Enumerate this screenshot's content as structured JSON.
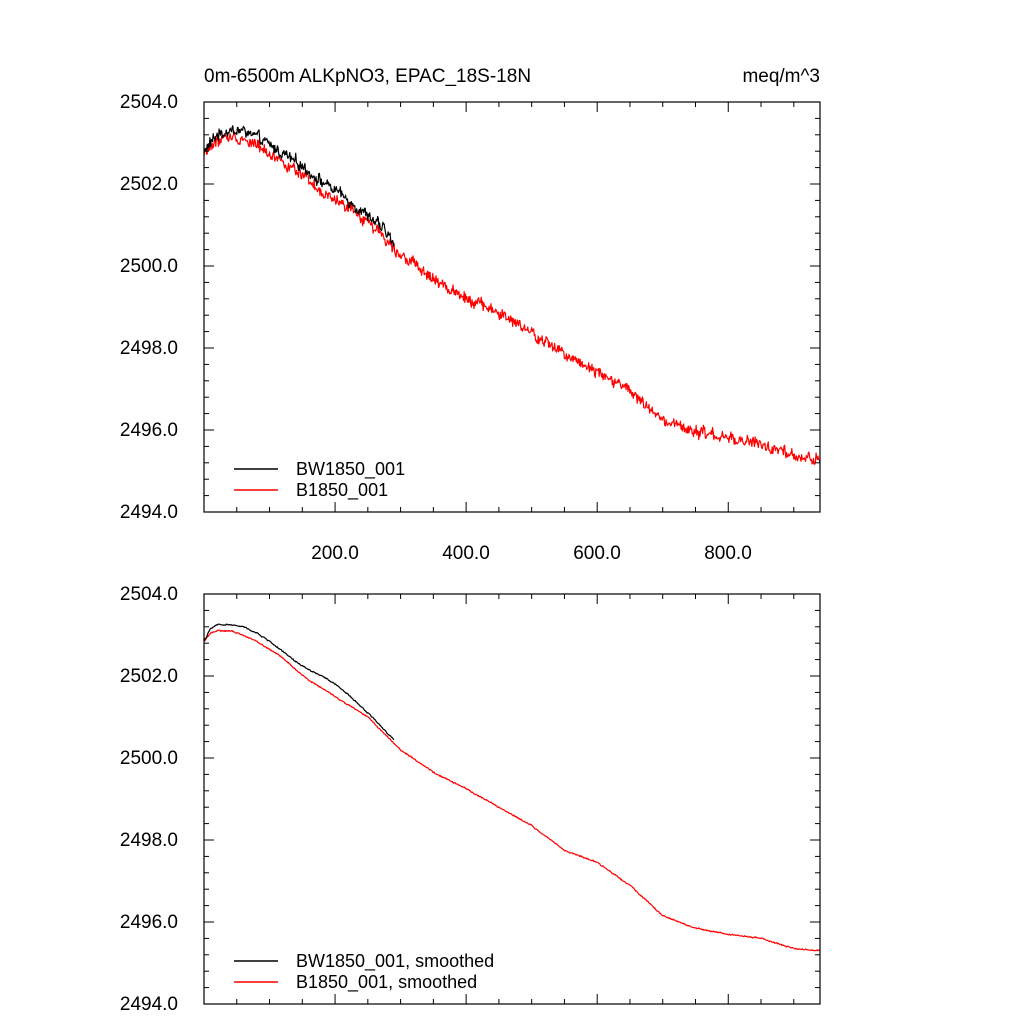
{
  "chart_data": [
    {
      "type": "line",
      "title_left": "0m-6500m ALKpNO3, EPAC_18S-18N",
      "title_right": "meq/m^3",
      "xlabel": "",
      "ylabel": "",
      "xlim": [
        0,
        940
      ],
      "ylim": [
        2494.0,
        2504.0
      ],
      "x_ticks": [
        200,
        400,
        600,
        800
      ],
      "x_tick_labels": [
        "200.0",
        "400.0",
        "600.0",
        "800.0"
      ],
      "y_ticks": [
        2494,
        2496,
        2498,
        2500,
        2502,
        2504
      ],
      "y_tick_labels": [
        "2494.0",
        "2496.0",
        "2498.0",
        "2500.0",
        "2502.0",
        "2504.0"
      ],
      "legend_position": "bottom-left",
      "series": [
        {
          "name": "BW1850_001",
          "color": "#000000",
          "noise": 0.13,
          "x": [
            0,
            20,
            40,
            60,
            80,
            100,
            120,
            140,
            160,
            180,
            200,
            220,
            240,
            260,
            280,
            290
          ],
          "values": [
            2502.8,
            2503.2,
            2503.3,
            2503.3,
            2503.15,
            2502.95,
            2502.75,
            2502.55,
            2502.3,
            2502.05,
            2501.85,
            2501.6,
            2501.35,
            2501.1,
            2500.8,
            2500.5
          ]
        },
        {
          "name": "B1850_001",
          "color": "#ff0000",
          "noise": 0.13,
          "x": [
            0,
            20,
            40,
            60,
            80,
            100,
            120,
            140,
            160,
            180,
            200,
            250,
            300,
            350,
            400,
            450,
            500,
            550,
            600,
            650,
            700,
            750,
            800,
            850,
            900,
            940
          ],
          "values": [
            2502.75,
            2503.05,
            2503.15,
            2503.1,
            2502.95,
            2502.75,
            2502.55,
            2502.3,
            2502.05,
            2501.75,
            2501.6,
            2501.1,
            2500.3,
            2499.65,
            2499.25,
            2498.85,
            2498.35,
            2497.85,
            2497.45,
            2496.95,
            2496.2,
            2495.95,
            2495.8,
            2495.65,
            2495.35,
            2495.25
          ]
        }
      ]
    },
    {
      "type": "line",
      "xlabel": "",
      "ylabel": "",
      "xlim": [
        0,
        940
      ],
      "ylim": [
        2494.0,
        2504.0
      ],
      "x_ticks": [
        200,
        400,
        600,
        800
      ],
      "y_ticks": [
        2494,
        2496,
        2498,
        2500,
        2502,
        2504
      ],
      "y_tick_labels": [
        "2494.0",
        "2496.0",
        "2498.0",
        "2500.0",
        "2502.0",
        "2504.0"
      ],
      "legend_position": "bottom-left",
      "series": [
        {
          "name": "BW1850_001, smoothed",
          "color": "#000000",
          "noise": 0.015,
          "x": [
            0,
            10,
            20,
            40,
            60,
            80,
            100,
            120,
            140,
            160,
            180,
            200,
            220,
            240,
            260,
            280,
            290
          ],
          "values": [
            2502.85,
            2503.15,
            2503.25,
            2503.25,
            2503.2,
            2503.05,
            2502.85,
            2502.6,
            2502.35,
            2502.15,
            2502.0,
            2501.8,
            2501.55,
            2501.25,
            2500.95,
            2500.6,
            2500.45
          ]
        },
        {
          "name": "B1850_001, smoothed",
          "color": "#ff0000",
          "noise": 0.015,
          "x": [
            0,
            10,
            20,
            40,
            60,
            80,
            100,
            120,
            140,
            160,
            180,
            200,
            250,
            300,
            350,
            400,
            450,
            500,
            550,
            600,
            650,
            700,
            750,
            800,
            850,
            900,
            940
          ],
          "values": [
            2502.85,
            2503.05,
            2503.1,
            2503.1,
            2503.0,
            2502.85,
            2502.65,
            2502.45,
            2502.15,
            2501.9,
            2501.7,
            2501.5,
            2501.0,
            2500.2,
            2499.65,
            2499.25,
            2498.8,
            2498.35,
            2497.75,
            2497.45,
            2496.9,
            2496.15,
            2495.85,
            2495.7,
            2495.6,
            2495.35,
            2495.3
          ]
        }
      ]
    }
  ]
}
